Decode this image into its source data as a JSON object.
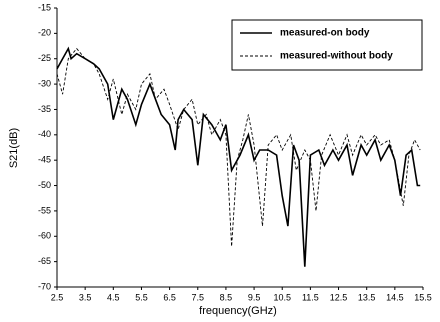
{
  "chart_data": {
    "type": "line",
    "xlabel": "frequency(GHz)",
    "ylabel": "S21(dB)",
    "xlim": [
      2.5,
      15.5
    ],
    "ylim": [
      -70,
      -15
    ],
    "xticks": [
      2.5,
      3.5,
      4.5,
      5.5,
      6.5,
      7.5,
      8.5,
      9.5,
      10.5,
      11.5,
      12.5,
      13.5,
      14.5,
      15.5
    ],
    "yticks": [
      -15,
      -20,
      -25,
      -30,
      -35,
      -40,
      -45,
      -50,
      -55,
      -60,
      -65,
      -70
    ],
    "legend": "upper right",
    "series": [
      {
        "name": "measured-on body",
        "color": "#000000",
        "linestyle": "solid",
        "x": [
          2.5,
          2.7,
          2.9,
          3.0,
          3.2,
          3.5,
          3.8,
          4.0,
          4.3,
          4.5,
          4.8,
          5.0,
          5.3,
          5.5,
          5.8,
          6.0,
          6.2,
          6.5,
          6.7,
          6.8,
          7.0,
          7.3,
          7.5,
          7.7,
          8.0,
          8.3,
          8.5,
          8.7,
          9.0,
          9.3,
          9.5,
          9.7,
          10.0,
          10.3,
          10.5,
          10.7,
          10.9,
          11.1,
          11.3,
          11.5,
          11.8,
          12.0,
          12.3,
          12.5,
          12.8,
          13.0,
          13.3,
          13.5,
          13.8,
          14.0,
          14.3,
          14.5,
          14.7,
          14.9,
          15.1,
          15.3,
          15.4
        ],
        "values": [
          -27,
          -25,
          -23,
          -25,
          -24,
          -25,
          -26,
          -27,
          -30,
          -37,
          -31,
          -33,
          -38,
          -34,
          -30,
          -33,
          -36,
          -38,
          -43,
          -37,
          -35,
          -37,
          -46,
          -36,
          -38,
          -41,
          -38,
          -47,
          -44,
          -40,
          -45,
          -43,
          -43,
          -44,
          -52,
          -58,
          -42,
          -45,
          -66,
          -44,
          -43,
          -46,
          -43,
          -45,
          -42,
          -48,
          -42,
          -44,
          -41,
          -45,
          -42,
          -45,
          -52,
          -44,
          -43,
          -50,
          -50
        ]
      },
      {
        "name": "measured-without body",
        "color": "#000000",
        "linestyle": "dashed",
        "x": [
          2.5,
          2.7,
          2.9,
          3.2,
          3.5,
          3.8,
          4.0,
          4.3,
          4.5,
          4.8,
          5.0,
          5.3,
          5.5,
          5.8,
          6.0,
          6.3,
          6.5,
          6.8,
          7.0,
          7.3,
          7.5,
          7.8,
          8.0,
          8.3,
          8.5,
          8.7,
          8.9,
          9.1,
          9.3,
          9.5,
          9.8,
          10.0,
          10.3,
          10.5,
          10.8,
          11.0,
          11.3,
          11.5,
          11.7,
          11.9,
          12.2,
          12.5,
          12.8,
          13.0,
          13.3,
          13.5,
          13.8,
          14.0,
          14.3,
          14.5,
          14.8,
          15.0,
          15.2,
          15.4
        ],
        "values": [
          -28,
          -32,
          -25,
          -23,
          -25,
          -26,
          -28,
          -33,
          -29,
          -36,
          -32,
          -35,
          -30,
          -28,
          -33,
          -31,
          -34,
          -39,
          -35,
          -33,
          -38,
          -36,
          -40,
          -37,
          -40,
          -62,
          -45,
          -41,
          -36,
          -42,
          -58,
          -42,
          -40,
          -43,
          -40,
          -47,
          -43,
          -45,
          -55,
          -44,
          -40,
          -44,
          -40,
          -44,
          -40,
          -42,
          -40,
          -42,
          -41,
          -45,
          -54,
          -44,
          -41,
          -43
        ]
      }
    ]
  }
}
